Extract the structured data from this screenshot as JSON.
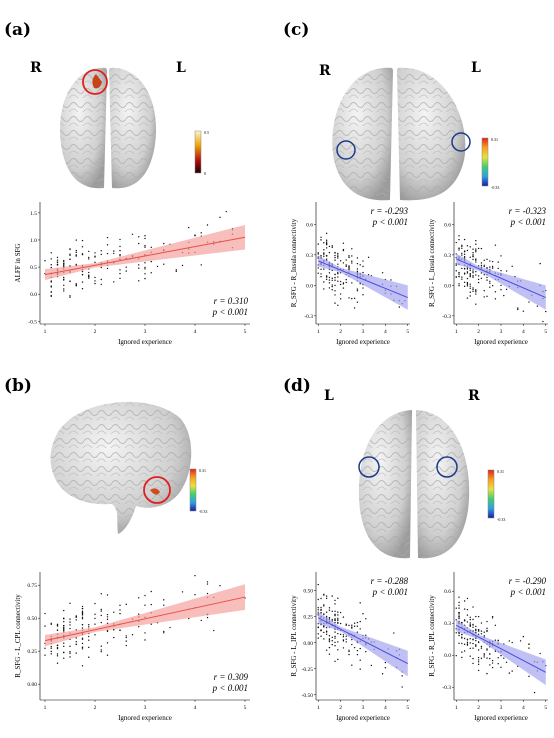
{
  "panels": {
    "a": {
      "label": "(a)",
      "hemi_left": "R",
      "hemi_right": "L",
      "colorbar": {
        "top": "0.5",
        "bottom": "0"
      }
    },
    "b": {
      "label": "(b)",
      "colorbar": {
        "top": "0.31",
        "bottom": "-0.33"
      }
    },
    "c": {
      "label": "(c)",
      "hemi_left": "R",
      "hemi_right": "L",
      "colorbar": {
        "top": "0.31",
        "bottom": "-0.33"
      }
    },
    "d": {
      "label": "(d)",
      "hemi_left": "L",
      "hemi_right": "R",
      "colorbar": {
        "top": "0.31",
        "bottom": "-0.33"
      }
    }
  },
  "colors": {
    "positive": "#e8504a",
    "positive_band": "#f4a3a0",
    "negative": "#4a4ae0",
    "negative_band": "#a5a5ef",
    "highlight_red": "#e02020",
    "highlight_blue": "#1a3b8a"
  },
  "chart_data": [
    {
      "id": "a",
      "type": "scatter",
      "xlabel": "Ignored experience",
      "ylabel": "ALFF in SFG",
      "xticks": [
        "1",
        "2",
        "3",
        "4",
        "5"
      ],
      "yticks": [
        "-0.5",
        "0.0",
        "0.5",
        "1.0",
        "1.5"
      ],
      "xlim": [
        0.9,
        5.1
      ],
      "ylim": [
        -0.55,
        1.7
      ],
      "fit": {
        "x": [
          1,
          5
        ],
        "y": [
          0.36,
          1.05
        ]
      },
      "r_text": "r = 0.310",
      "p_text": "p < 0.001",
      "stats_pos": "bottom-right",
      "color": "positive"
    },
    {
      "id": "c1",
      "type": "scatter",
      "xlabel": "Ignored experience",
      "ylabel": "R_SFG - R_Insula connectivity",
      "xticks": [
        "1",
        "2",
        "3",
        "4",
        "5"
      ],
      "yticks": [
        "-0.3",
        "0.0",
        "0.3",
        "0.6"
      ],
      "xlim": [
        0.9,
        5.1
      ],
      "ylim": [
        -0.38,
        0.82
      ],
      "fit": {
        "x": [
          1,
          5
        ],
        "y": [
          0.24,
          -0.12
        ]
      },
      "r_text": "r = -0.293",
      "p_text": "p < 0.001",
      "stats_pos": "top-right",
      "color": "negative"
    },
    {
      "id": "c2",
      "type": "scatter",
      "xlabel": "Ignored experience",
      "ylabel": "R_SFG - L_Insula connectivity",
      "xticks": [
        "1",
        "2",
        "3",
        "4",
        "5"
      ],
      "yticks": [
        "-0.3",
        "0.0",
        "0.3",
        "0.6"
      ],
      "xlim": [
        0.9,
        5.1
      ],
      "ylim": [
        -0.38,
        0.82
      ],
      "fit": {
        "x": [
          1,
          5
        ],
        "y": [
          0.26,
          -0.12
        ]
      },
      "r_text": "r = -0.323",
      "p_text": "p < 0.001",
      "stats_pos": "top-right",
      "color": "negative"
    },
    {
      "id": "b",
      "type": "scatter",
      "xlabel": "Ignored experience",
      "ylabel": "R_SFG - L_CPL connectivity",
      "xticks": [
        "1",
        "2",
        "3",
        "4",
        "5"
      ],
      "yticks": [
        "0.00",
        "0.25",
        "0.50",
        "0.75"
      ],
      "xlim": [
        0.9,
        5.1
      ],
      "ylim": [
        -0.12,
        0.85
      ],
      "fit": {
        "x": [
          1,
          5
        ],
        "y": [
          0.33,
          0.66
        ]
      },
      "r_text": "r = 0.309",
      "p_text": "p < 0.001",
      "stats_pos": "bottom-right",
      "color": "positive"
    },
    {
      "id": "d1",
      "type": "scatter",
      "xlabel": "Ignored experience",
      "ylabel": "R_SFG - L_IPL connectivity",
      "xticks": [
        "1",
        "2",
        "3",
        "4",
        "5"
      ],
      "yticks": [
        "-0.50",
        "-0.25",
        "0.00",
        "0.25",
        "0.50"
      ],
      "xlim": [
        0.9,
        5.1
      ],
      "ylim": [
        -0.55,
        0.68
      ],
      "fit": {
        "x": [
          1,
          5
        ],
        "y": [
          0.24,
          -0.2
        ]
      },
      "r_text": "r = -0.288",
      "p_text": "p < 0.001",
      "stats_pos": "top-right",
      "color": "negative"
    },
    {
      "id": "d2",
      "type": "scatter",
      "xlabel": "Ignored experience",
      "ylabel": "R_SFG - R_IPL connectivity",
      "xticks": [
        "1",
        "2",
        "3",
        "4",
        "5"
      ],
      "yticks": [
        "-0.3",
        "0.0",
        "0.3",
        "0.6"
      ],
      "xlim": [
        0.9,
        5.1
      ],
      "ylim": [
        -0.42,
        0.78
      ],
      "fit": {
        "x": [
          1,
          5
        ],
        "y": [
          0.28,
          -0.16
        ]
      },
      "r_text": "r = -0.290",
      "p_text": "p < 0.001",
      "stats_pos": "top-right",
      "color": "negative"
    }
  ]
}
